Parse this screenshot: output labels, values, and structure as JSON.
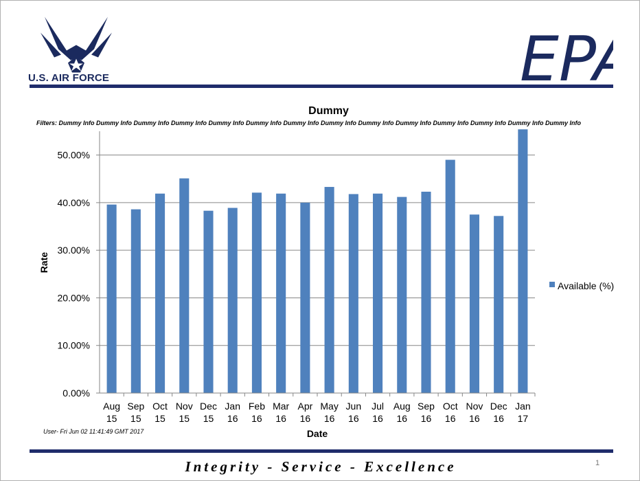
{
  "header": {
    "logo_text": "U.S. AIR FORCE",
    "epa_text": "EPA"
  },
  "chart_data": {
    "type": "bar",
    "title": "Dummy",
    "subtitle": "Filters:  Dummy Info Dummy Info Dummy Info Dummy Info Dummy Info Dummy Info Dummy Info Dummy Info Dummy Info Dummy Info Dummy Info Dummy Info Dummy Info Dummy Info",
    "xlabel": "Date",
    "ylabel": "Rate",
    "categories": [
      [
        "Aug",
        "15"
      ],
      [
        "Sep",
        "15"
      ],
      [
        "Oct",
        "15"
      ],
      [
        "Nov",
        "15"
      ],
      [
        "Dec",
        "15"
      ],
      [
        "Jan",
        "16"
      ],
      [
        "Feb",
        "16"
      ],
      [
        "Mar",
        "16"
      ],
      [
        "Apr",
        "16"
      ],
      [
        "May",
        "16"
      ],
      [
        "Jun",
        "16"
      ],
      [
        "Jul",
        "16"
      ],
      [
        "Aug",
        "16"
      ],
      [
        "Sep",
        "16"
      ],
      [
        "Oct",
        "16"
      ],
      [
        "Nov",
        "16"
      ],
      [
        "Dec",
        "16"
      ],
      [
        "Jan",
        "17"
      ]
    ],
    "series": [
      {
        "name": "Available (%)",
        "color": "#4f81bd",
        "values": [
          39.6,
          38.6,
          41.9,
          45.1,
          38.3,
          38.9,
          42.1,
          41.9,
          40.0,
          43.3,
          41.8,
          41.9,
          41.2,
          42.3,
          49.0,
          37.5,
          37.2,
          55.4
        ]
      }
    ],
    "ylim": [
      0,
      55
    ],
    "yticks": [
      0,
      10,
      20,
      30,
      40,
      50
    ],
    "ytick_labels": [
      "0.00%",
      "10.00%",
      "20.00%",
      "30.00%",
      "40.00%",
      "50.00%"
    ],
    "grid": true,
    "legend": "right"
  },
  "footer": {
    "user_stamp": "User- Fri Jun 02 11:41:49 GMT 2017",
    "motto": "Integrity - Service - Excellence",
    "page_number": "1"
  }
}
